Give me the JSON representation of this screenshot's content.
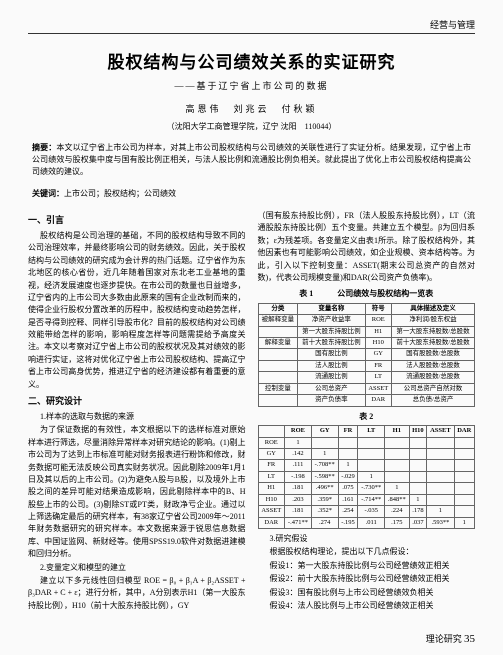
{
  "header": {
    "section": "经营与管理"
  },
  "title": "股权结构与公司绩效关系的实证研究",
  "subtitle": "——基于辽宁省上市公司的数据",
  "authors": "高恩伟　刘兆云　付秋颖",
  "affiliation": "（沈阳大学工商管理学院，辽宁 沈阳　110044）",
  "abstract": {
    "label": "摘要：",
    "text": "本文以辽宁省上市公司为样本，对其上市公司股权结构与公司绩效的关联性进行了实证分析。结果发现，辽宁省上市公司绩效与股权集中度与国有股比例正相关，与法人股比例和流通股比例负相关。就此提出了优化上市公司股权结构提高公司绩效的建议。"
  },
  "keywords": {
    "label": "关键词：",
    "text": "上市公司；股权结构；公司绩效"
  },
  "left": {
    "h1": "一、引言",
    "p1": "股权结构是公司治理的基础，不同的股权结构导致不同的公司治理效率，并最终影响公司的财务绩效。因此，关于股权结构与公司绩效的研究成为会计界的热门话题。辽宁省作为东北地区的核心省份，近几年随着国家对东北老工业基地的重视，经济发展速度也逐步提快。在市公司的数量也日益增多，辽宁省内的上市公司大多数由此原来的国有企业改制而来的，使得企业行股权分置改革的历程中，股权结构变动趋势怎样，是否寻得到控释、同样引导股市化？目前的股权结构对公司绩效能带给怎样的影响，影响程度怎样等问题需提给予高度关注。本文以考察对辽宁省上市公司的股权状况及其对绩效的影响进行实证，这将对优化辽宁省上市公司股权结构、提高辽宁省上市公司高身优势，推进辽宁省的经济建设都有着重要的意义。",
    "h2": "二、研究设计",
    "sub1": "1.样本的选取与数据的来源",
    "p2": "为了保证数据的有效性，本文根据以下的选样标准对原始样本进行筛选，尽量消除异常样本对研究结论的影响。(1)剔上市公司为了达到上市标准可能对财务报表进行粉饰和修改，财务数据可能无法反映公司真实财务状况。因此剔除2009年1月1日及其以后的上市公司。(2)为避免A股与B股，以及境外上市股之间的差异可能对结果造成影响，因此剔除样本中的B、H股些上市的公司。(3)剔除ST或PT类，财政净亏企业。通过以上筛选确定最后的研究样本，有38家辽宁省公司2009年～2011年财务数据研究的研究样本。本文数据来源于锐思信息数据库、中国证监网、新财经等。使用SPSS19.0软件对数据进建模和回归分析。",
    "sub2": "2.变量定义和模型的建立",
    "p3": "建立以下多元线性回归模型 ROE = β₀ + β₁A + β₂ASSET + β₃DAR + C + ε；进行分析，其中，A分别表示H1（第一大股东持股比例），H10（前十大股东持股比例），GY"
  },
  "right": {
    "p0": "（国有股东持股比例），FR（法人股股东持股比例），LT（流通股股东持股比例）五个变量。共建立五个模型。β为回归系数；ε为残差项。各变量定义由表1所示。除了股权结构外，其他因素也有可能影响公司绩效，如企业规模、资本结构等。为此，引入以下控制变量：ASSET(期末公司总资产的自然对数)，代表公司规模变量)和DAR(公司资产负债率)。",
    "table1": {
      "caption": "表 1　　　公司绩效与股权结构一览表",
      "head": [
        "分类",
        "变量名称",
        "符号",
        "具体描述及定义"
      ],
      "rows": [
        [
          "被解释变量",
          "净资产收益率",
          "ROE",
          "净利润/股东权益"
        ],
        [
          "",
          "第一大股东持股比例",
          "H1",
          "第一大股东持股数/总股数"
        ],
        [
          "解释变量",
          "前十大股东持股比例",
          "H10",
          "前十大股东持股数/总股数"
        ],
        [
          "",
          "国有股比例",
          "GY",
          "国有股股数/总股数"
        ],
        [
          "",
          "法人股比例",
          "FR",
          "法人股股数/总股数"
        ],
        [
          "",
          "流通股比例",
          "LT",
          "流通股股数/总股数"
        ],
        [
          "控制变量",
          "公司总资产",
          "ASSET",
          "公司总资产自然对数"
        ],
        [
          "",
          "资产负债率",
          "DAR",
          "总负债/总资产"
        ]
      ]
    },
    "table2": {
      "caption": "表 2",
      "head": [
        "",
        "ROE",
        "GY",
        "FR",
        "LT",
        "H1",
        "H10",
        "ASSET",
        "DAR"
      ],
      "rows": [
        [
          "ROE",
          "1",
          "",
          "",
          "",
          "",
          "",
          "",
          ""
        ],
        [
          "GY",
          ".142",
          "1",
          "",
          "",
          "",
          "",
          "",
          ""
        ],
        [
          "FR",
          ".111",
          "-.708**",
          "1",
          "",
          "",
          "",
          "",
          ""
        ],
        [
          "LT",
          "-.198",
          "-.598**",
          "-.029",
          "1",
          "",
          "",
          "",
          ""
        ],
        [
          "H1",
          ".181",
          ".496**",
          ".075",
          "-.730**",
          "1",
          "",
          "",
          ""
        ],
        [
          "H10",
          ".203",
          ".359*",
          ".161",
          "-.714**",
          ".848**",
          "1",
          "",
          ""
        ],
        [
          "ASSET",
          ".181",
          ".352*",
          ".254",
          "-.035",
          ".224",
          ".178",
          "1",
          ""
        ],
        [
          "DAR",
          "-.471**",
          ".274",
          "-.195",
          ".011",
          ".175",
          ".037",
          ".593**",
          "1"
        ]
      ]
    },
    "h3": "3.研究假设",
    "p4": "根据股权结构理论，提出以下几点假设：",
    "hyp": [
      "假设1：第一大股东持股比例与公司经营绩效正相关",
      "假设2：前十大股东持股比例与公司经营绩效正相关",
      "假设3：国有股比例与上市公司经营绩效负相关",
      "假设4：法人股比例与上市公司经营绩效正相关"
    ]
  },
  "footer": {
    "label": "理论研究",
    "page": "35"
  }
}
